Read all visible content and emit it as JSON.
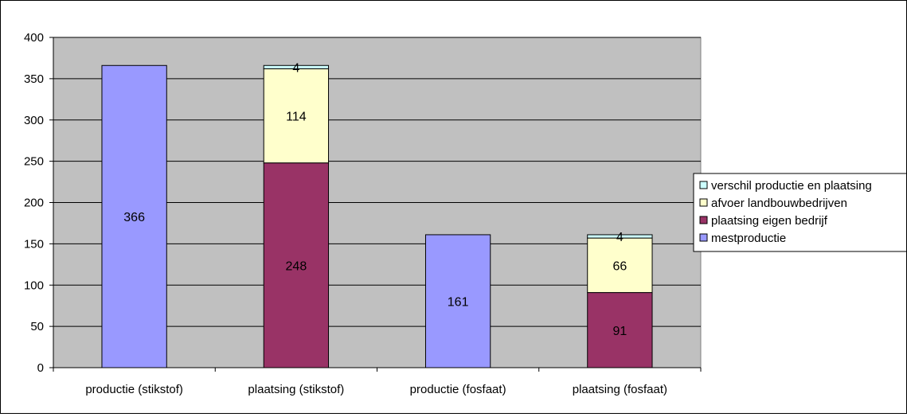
{
  "chart_data": {
    "type": "bar",
    "stacked": true,
    "categories": [
      "productie (stikstof)",
      "plaatsing (stikstof)",
      "productie (fosfaat)",
      "plaatsing (fosfaat)"
    ],
    "series": [
      {
        "name": "mestproductie",
        "values": [
          366,
          null,
          161,
          null
        ],
        "color": "#9999ff"
      },
      {
        "name": "plaatsing eigen bedrijf",
        "values": [
          null,
          248,
          null,
          91
        ],
        "color": "#993366"
      },
      {
        "name": "afvoer landbouwbedrijven",
        "values": [
          null,
          114,
          null,
          66
        ],
        "color": "#ffffcc"
      },
      {
        "name": "verschil productie en plaatsing",
        "values": [
          null,
          4,
          null,
          4
        ],
        "color": "#ccffff"
      }
    ],
    "legend_order": [
      "verschil productie en plaatsing",
      "afvoer landbouwbedrijven",
      "plaatsing eigen bedrijf",
      "mestproductie"
    ],
    "ylim": [
      0,
      400
    ],
    "yticks": [
      0,
      50,
      100,
      150,
      200,
      250,
      300,
      350,
      400
    ],
    "grid": true,
    "legend_position": "right",
    "plot_background": "#c0c0c0"
  }
}
